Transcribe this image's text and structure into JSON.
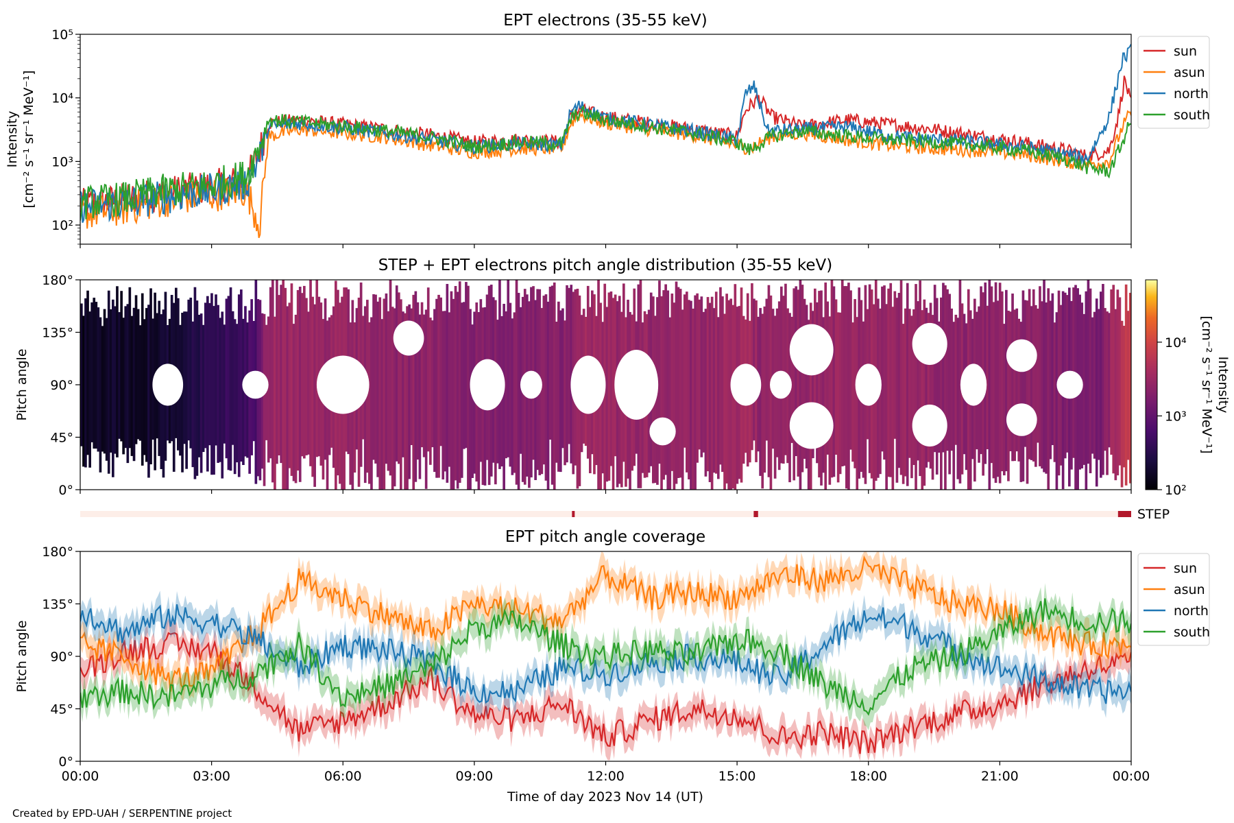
{
  "figure": {
    "credit": "Created by EPD-UAH / SERPENTINE project"
  },
  "colors": {
    "sun": "#d62728",
    "asun": "#ff7f0e",
    "north": "#1f77b4",
    "south": "#2ca02c",
    "step_bar": "#b2182b",
    "step_track": "#fdeee8"
  },
  "chart_data": [
    {
      "type": "line",
      "title": "EPT electrons (35-55 keV)",
      "ylabel_line1": "Intensity",
      "ylabel_line2": "[cm⁻² s⁻¹ sr⁻¹ MeV⁻¹]",
      "yscale": "log",
      "ylim": [
        50,
        100000
      ],
      "ytick_labels": [
        "10²",
        "10³",
        "10⁴",
        "10⁵"
      ],
      "ytick_values": [
        100,
        1000,
        10000,
        100000
      ],
      "xlim_hours": [
        0,
        24
      ],
      "legend_placement": "outside-right-top",
      "series": [
        {
          "name": "sun",
          "color_key": "sun",
          "hours": [
            0,
            1,
            2,
            3,
            3.8,
            4.1,
            4.3,
            5,
            6,
            7,
            8,
            9,
            10,
            11,
            11.2,
            11.4,
            12,
            13,
            14,
            15,
            15.2,
            15.5,
            15.8,
            16.5,
            17.5,
            18.5,
            19.5,
            20.5,
            21.5,
            22.5,
            23,
            23.5,
            23.7,
            23.85,
            24
          ],
          "values": [
            200,
            250,
            320,
            400,
            500,
            1500,
            4000,
            4500,
            3800,
            3200,
            2600,
            2000,
            2200,
            2000,
            5000,
            6500,
            5000,
            4000,
            3200,
            2500,
            6500,
            10000,
            5000,
            3500,
            4500,
            3800,
            3200,
            2500,
            2000,
            1500,
            1200,
            1500,
            5000,
            20000,
            8000
          ]
        },
        {
          "name": "asun",
          "color_key": "asun",
          "hours": [
            0,
            1,
            2,
            3,
            3.8,
            4.1,
            4.3,
            5,
            6,
            7,
            8,
            9,
            10,
            11,
            11.2,
            11.4,
            12,
            13,
            14,
            15,
            15.3,
            15.8,
            16.5,
            17.5,
            18.5,
            19.5,
            20.5,
            21.5,
            22.5,
            23,
            23.5,
            23.8,
            24
          ],
          "values": [
            150,
            180,
            250,
            300,
            350,
            100,
            2500,
            3200,
            2800,
            2400,
            1800,
            1400,
            1600,
            1600,
            4000,
            5500,
            4000,
            3200,
            2600,
            1800,
            1600,
            2500,
            2800,
            2200,
            1800,
            1600,
            1500,
            1300,
            1000,
            900,
            1000,
            3500,
            6000
          ]
        },
        {
          "name": "north",
          "color_key": "north",
          "hours": [
            0,
            1,
            2,
            3,
            3.8,
            4.1,
            4.3,
            5,
            6,
            7,
            8,
            9,
            10,
            11,
            11.2,
            11.4,
            12,
            13,
            14,
            15,
            15.2,
            15.4,
            15.7,
            16.5,
            17.5,
            18.5,
            19.5,
            20.5,
            21.5,
            22.5,
            23,
            23.5,
            23.8,
            24
          ],
          "values": [
            200,
            220,
            280,
            350,
            450,
            1200,
            3500,
            4000,
            3400,
            2800,
            2200,
            1700,
            1900,
            1800,
            6000,
            7500,
            4800,
            3800,
            3000,
            2200,
            12000,
            15000,
            3000,
            3200,
            3500,
            2500,
            2200,
            2000,
            1700,
            1300,
            1100,
            5000,
            40000,
            55000
          ]
        },
        {
          "name": "south",
          "color_key": "south",
          "hours": [
            0,
            1,
            2,
            3,
            3.8,
            4.1,
            4.3,
            5,
            6,
            7,
            8,
            9,
            10,
            11,
            11.2,
            11.4,
            12,
            13,
            14,
            15,
            15.3,
            15.8,
            16.5,
            17.5,
            18.5,
            19.5,
            20.5,
            21.5,
            22.5,
            23,
            23.5,
            23.8,
            24
          ],
          "values": [
            220,
            260,
            350,
            420,
            600,
            1800,
            4500,
            4200,
            3600,
            3000,
            2400,
            1700,
            2000,
            1900,
            4500,
            6000,
            4500,
            3500,
            2800,
            2000,
            1500,
            2500,
            3000,
            2500,
            2200,
            2000,
            1800,
            1500,
            1100,
            800,
            700,
            2000,
            4500
          ]
        }
      ]
    },
    {
      "type": "heatmap",
      "title": "STEP + EPT electrons pitch angle distribution (35-55 keV)",
      "ylabel": "Pitch angle",
      "ylim": [
        0,
        180
      ],
      "ytick_labels": [
        "0°",
        "45°",
        "90°",
        "135°",
        "180°"
      ],
      "ytick_values": [
        0,
        45,
        90,
        135,
        180
      ],
      "xlim_hours": [
        0,
        24
      ],
      "colormap": "inferno",
      "colorbar": {
        "label_line1": "Intensity",
        "label_line2": "[cm⁻² s⁻¹ sr⁻¹ MeV⁻¹]",
        "scale": "log",
        "range": [
          100,
          70000
        ],
        "tick_labels": [
          "10²",
          "10³",
          "10⁴"
        ],
        "tick_values": [
          100,
          1000,
          10000
        ]
      },
      "level_hours": [
        0,
        2,
        3,
        4,
        4.1,
        4.2,
        6,
        9,
        11.2,
        11.5,
        12,
        14,
        15.2,
        15.5,
        16,
        18,
        20,
        22,
        23.3,
        23.7,
        24
      ],
      "level_values": [
        150,
        200,
        350,
        600,
        1200,
        3000,
        2800,
        2000,
        2000,
        4000,
        3000,
        2500,
        4000,
        2500,
        2800,
        3000,
        2500,
        2000,
        1500,
        5000,
        10000
      ]
    },
    {
      "type": "bar",
      "title": "",
      "label": "STEP",
      "description_values": "STEP data availability markers",
      "xlim_hours": [
        0,
        24
      ],
      "marker_hours": [
        [
          11.23,
          11.28
        ],
        [
          15.38,
          15.48
        ],
        [
          23.7,
          24.0
        ]
      ]
    },
    {
      "type": "line",
      "title": "EPT pitch angle coverage",
      "ylabel": "Pitch angle",
      "xlabel": "Time of day 2023 Nov 14 (UT)",
      "ylim": [
        0,
        180
      ],
      "ytick_labels": [
        "0°",
        "45°",
        "90°",
        "135°",
        "180°"
      ],
      "ytick_values": [
        0,
        45,
        90,
        135,
        180
      ],
      "xlim_hours": [
        0,
        24
      ],
      "xtick_labels": [
        "00:00",
        "03:00",
        "06:00",
        "09:00",
        "12:00",
        "15:00",
        "18:00",
        "21:00",
        "00:00"
      ],
      "xtick_hours": [
        0,
        3,
        6,
        9,
        12,
        15,
        18,
        21,
        24
      ],
      "legend_placement": "outside-right-top",
      "series": [
        {
          "name": "sun",
          "color_key": "sun",
          "hours": [
            0,
            1,
            2,
            3,
            4,
            5,
            6,
            7,
            8,
            9,
            10,
            11,
            12,
            13,
            14,
            15,
            16,
            17,
            18,
            19,
            20,
            21,
            22,
            23,
            24
          ],
          "values": [
            75,
            95,
            100,
            95,
            65,
            25,
            35,
            50,
            70,
            40,
            35,
            50,
            20,
            35,
            45,
            40,
            20,
            25,
            15,
            30,
            40,
            50,
            65,
            80,
            85
          ]
        },
        {
          "name": "asun",
          "color_key": "asun",
          "hours": [
            0,
            1,
            2,
            3,
            4,
            5,
            6,
            7,
            8,
            9,
            10,
            11,
            12,
            13,
            14,
            15,
            16,
            17,
            18,
            19,
            20,
            21,
            22,
            23,
            24
          ],
          "values": [
            100,
            90,
            70,
            75,
            110,
            155,
            140,
            125,
            110,
            135,
            130,
            120,
            160,
            140,
            145,
            140,
            160,
            155,
            165,
            150,
            135,
            130,
            110,
            100,
            100
          ]
        },
        {
          "name": "north",
          "color_key": "north",
          "hours": [
            0,
            1,
            2,
            3,
            4,
            5,
            6,
            7,
            8,
            9,
            10,
            11,
            12,
            13,
            14,
            15,
            16,
            17,
            18,
            19,
            20,
            21,
            22,
            23,
            24
          ],
          "values": [
            130,
            110,
            125,
            120,
            105,
            80,
            100,
            95,
            85,
            60,
            60,
            80,
            75,
            85,
            90,
            85,
            70,
            100,
            125,
            115,
            95,
            80,
            70,
            60,
            60
          ]
        },
        {
          "name": "south",
          "color_key": "south",
          "hours": [
            0,
            1,
            2,
            3,
            4,
            5,
            6,
            7,
            8,
            9,
            10,
            11,
            12,
            13,
            14,
            15,
            16,
            17,
            18,
            19,
            20,
            21,
            22,
            23,
            24
          ],
          "values": [
            55,
            60,
            55,
            65,
            75,
            100,
            55,
            65,
            80,
            115,
            120,
            100,
            90,
            95,
            90,
            105,
            95,
            65,
            50,
            80,
            90,
            110,
            130,
            120,
            120
          ]
        }
      ]
    }
  ]
}
